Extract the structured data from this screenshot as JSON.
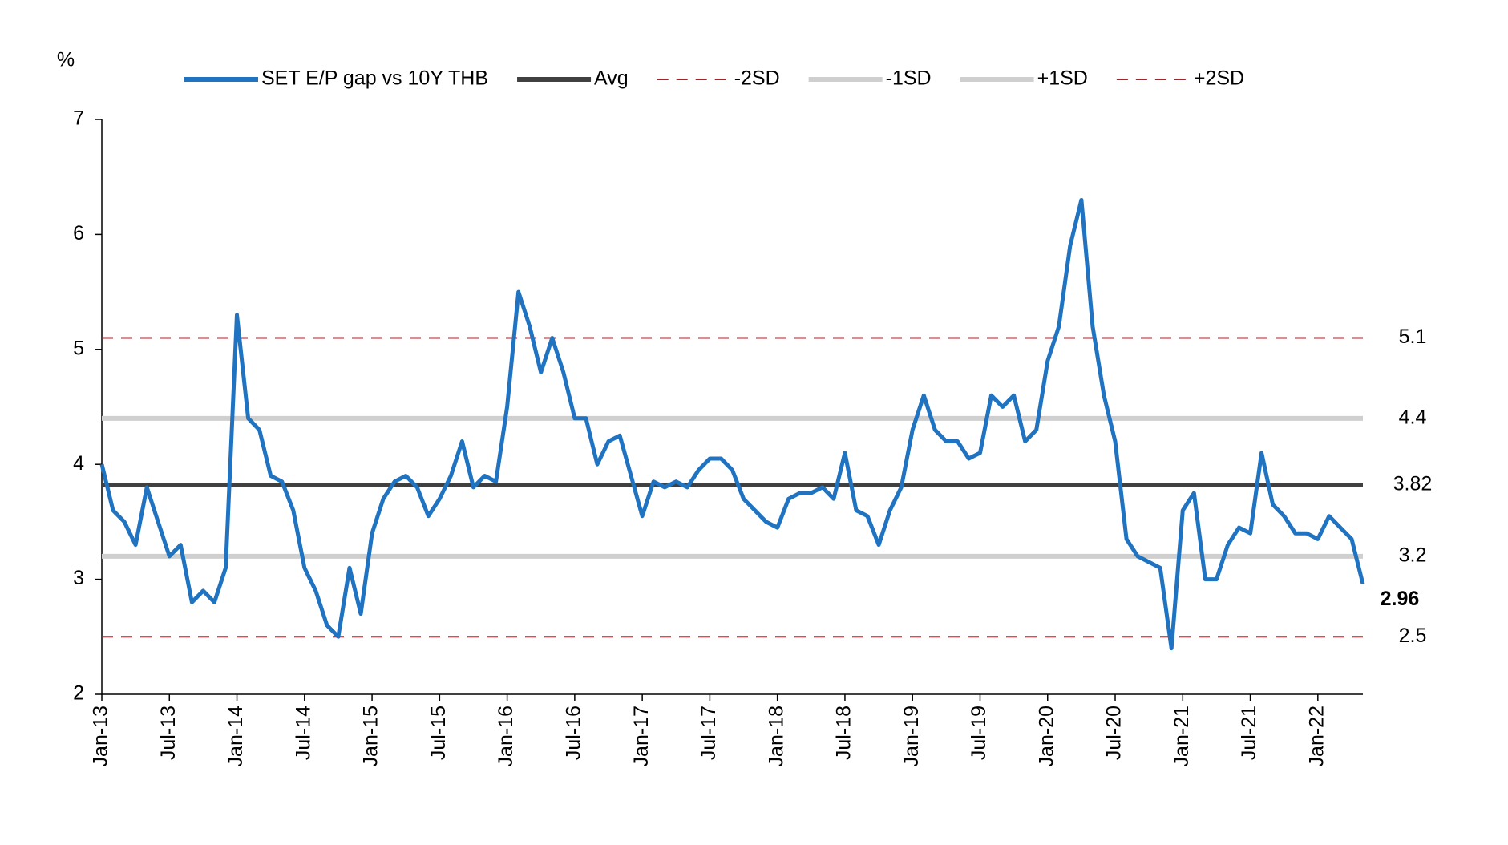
{
  "chart_data": {
    "type": "line",
    "y_label": "%",
    "x": [
      "2013-01",
      "2013-02",
      "2013-03",
      "2013-04",
      "2013-05",
      "2013-06",
      "2013-07",
      "2013-08",
      "2013-09",
      "2013-10",
      "2013-11",
      "2013-12",
      "2014-01",
      "2014-02",
      "2014-03",
      "2014-04",
      "2014-05",
      "2014-06",
      "2014-07",
      "2014-08",
      "2014-09",
      "2014-10",
      "2014-11",
      "2014-12",
      "2015-01",
      "2015-02",
      "2015-03",
      "2015-04",
      "2015-05",
      "2015-06",
      "2015-07",
      "2015-08",
      "2015-09",
      "2015-10",
      "2015-11",
      "2015-12",
      "2016-01",
      "2016-02",
      "2016-03",
      "2016-04",
      "2016-05",
      "2016-06",
      "2016-07",
      "2016-08",
      "2016-09",
      "2016-10",
      "2016-11",
      "2016-12",
      "2017-01",
      "2017-02",
      "2017-03",
      "2017-04",
      "2017-05",
      "2017-06",
      "2017-07",
      "2017-08",
      "2017-09",
      "2017-10",
      "2017-11",
      "2017-12",
      "2018-01",
      "2018-02",
      "2018-03",
      "2018-04",
      "2018-05",
      "2018-06",
      "2018-07",
      "2018-08",
      "2018-09",
      "2018-10",
      "2018-11",
      "2018-12",
      "2019-01",
      "2019-02",
      "2019-03",
      "2019-04",
      "2019-05",
      "2019-06",
      "2019-07",
      "2019-08",
      "2019-09",
      "2019-10",
      "2019-11",
      "2019-12",
      "2020-01",
      "2020-02",
      "2020-03",
      "2020-04",
      "2020-05",
      "2020-06",
      "2020-07",
      "2020-08",
      "2020-09",
      "2020-10",
      "2020-11",
      "2020-12",
      "2021-01",
      "2021-02",
      "2021-03",
      "2021-04",
      "2021-05",
      "2021-06",
      "2021-07",
      "2021-08",
      "2021-09",
      "2021-10",
      "2021-11",
      "2021-12",
      "2022-01",
      "2022-02",
      "2022-03",
      "2022-04",
      "2022-05"
    ],
    "series": [
      {
        "name": "SET E/P gap vs 10Y THB",
        "color": "#1f73c1",
        "width": 5,
        "values": [
          4.0,
          3.6,
          3.5,
          3.3,
          3.8,
          3.5,
          3.2,
          3.3,
          2.8,
          2.9,
          2.8,
          3.1,
          5.3,
          4.4,
          4.3,
          3.9,
          3.85,
          3.6,
          3.1,
          2.9,
          2.6,
          2.5,
          3.1,
          2.7,
          3.4,
          3.7,
          3.85,
          3.9,
          3.8,
          3.55,
          3.7,
          3.9,
          4.2,
          3.8,
          3.9,
          3.85,
          4.5,
          5.5,
          5.2,
          4.8,
          5.1,
          4.8,
          4.4,
          4.4,
          4.0,
          4.2,
          4.25,
          3.9,
          3.55,
          3.85,
          3.8,
          3.85,
          3.8,
          3.95,
          4.05,
          4.05,
          3.95,
          3.7,
          3.6,
          3.5,
          3.45,
          3.7,
          3.75,
          3.75,
          3.8,
          3.7,
          4.1,
          3.6,
          3.55,
          3.3,
          3.6,
          3.8,
          4.3,
          4.6,
          4.3,
          4.2,
          4.2,
          4.05,
          4.1,
          4.6,
          4.5,
          4.6,
          4.2,
          4.3,
          4.9,
          5.2,
          5.9,
          6.3,
          5.2,
          4.6,
          4.2,
          3.35,
          3.2,
          3.15,
          3.1,
          2.4,
          3.6,
          3.75,
          3.0,
          3.0,
          3.3,
          3.45,
          3.4,
          4.1,
          3.65,
          3.55,
          3.4,
          3.4,
          3.35,
          3.55,
          3.45,
          3.35,
          2.96
        ]
      },
      {
        "name": "Avg",
        "color": "#404040",
        "width": 5,
        "value": 3.82
      },
      {
        "name": "-2SD",
        "color": "#a0262c",
        "width": 2,
        "dash": true,
        "value": 2.5,
        "label_color": "#a0265e"
      },
      {
        "name": "-1SD",
        "color": "#cfcfcf",
        "width": 6,
        "value": 3.2,
        "label_color": "#999999"
      },
      {
        "name": "+1SD",
        "color": "#cfcfcf",
        "width": 6,
        "value": 4.4,
        "label_color": "#999999"
      },
      {
        "name": "+2SD",
        "color": "#a0262c",
        "width": 2,
        "dash": true,
        "value": 5.1,
        "label_color": "#a0265e"
      }
    ],
    "end_label_color": "#17375e",
    "ylim": [
      2,
      7
    ],
    "yticks": [
      2,
      3,
      4,
      5,
      6,
      7
    ],
    "xlim": [
      "2013-01",
      "2022-05"
    ],
    "xticks": [
      {
        "value": "2013-01",
        "label": "Jan-13"
      },
      {
        "value": "2013-07",
        "label": "Jul-13"
      },
      {
        "value": "2014-01",
        "label": "Jan-14"
      },
      {
        "value": "2014-07",
        "label": "Jul-14"
      },
      {
        "value": "2015-01",
        "label": "Jan-15"
      },
      {
        "value": "2015-07",
        "label": "Jul-15"
      },
      {
        "value": "2016-01",
        "label": "Jan-16"
      },
      {
        "value": "2016-07",
        "label": "Jul-16"
      },
      {
        "value": "2017-01",
        "label": "Jan-17"
      },
      {
        "value": "2017-07",
        "label": "Jul-17"
      },
      {
        "value": "2018-01",
        "label": "Jan-18"
      },
      {
        "value": "2018-07",
        "label": "Jul-18"
      },
      {
        "value": "2019-01",
        "label": "Jan-19"
      },
      {
        "value": "2019-07",
        "label": "Jul-19"
      },
      {
        "value": "2020-01",
        "label": "Jan-20"
      },
      {
        "value": "2020-07",
        "label": "Jul-20"
      },
      {
        "value": "2021-01",
        "label": "Jan-21"
      },
      {
        "value": "2021-07",
        "label": "Jul-21"
      },
      {
        "value": "2022-01",
        "label": "Jan-22"
      }
    ],
    "legend": "top"
  }
}
